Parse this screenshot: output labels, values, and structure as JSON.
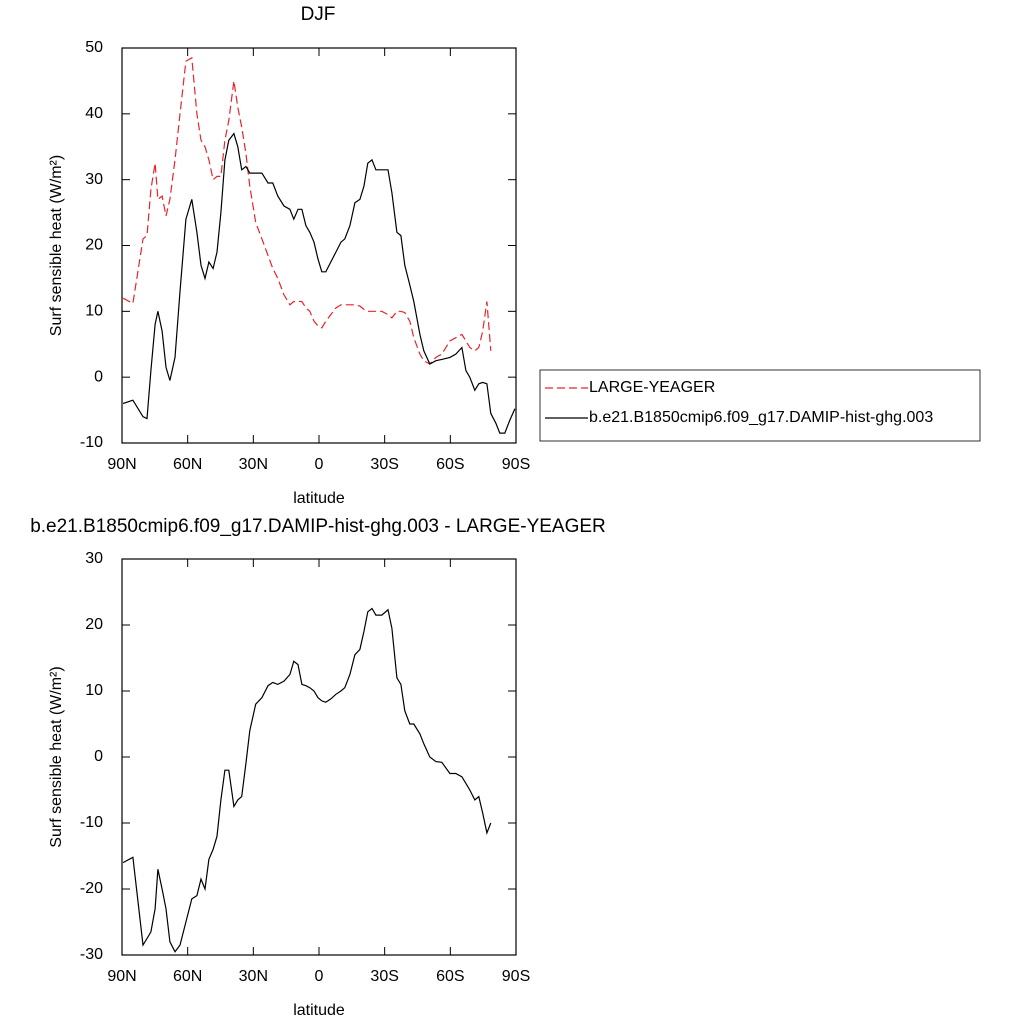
{
  "chart_data": [
    {
      "type": "line",
      "title": "DJF",
      "xlabel": "latitude",
      "ylabel": "Surf sensible heat (W/m²)",
      "x": [
        89.5,
        85.0,
        80.4,
        78.6,
        76.8,
        74.9,
        73.6,
        71.7,
        69.9,
        68.1,
        65.8,
        63.5,
        60.8,
        58.1,
        55.8,
        53.9,
        52.1,
        50.3,
        48.4,
        46.6,
        44.8,
        43.0,
        41.2,
        38.9,
        37.1,
        35.3,
        33.4,
        31.6,
        28.9,
        26.1,
        23.3,
        21.1,
        18.8,
        16.0,
        13.3,
        11.5,
        9.6,
        7.8,
        6.0,
        4.2,
        2.3,
        0.5,
        -1.3,
        -3.1,
        -5.4,
        -7.7,
        -10.0,
        -11.8,
        -14.1,
        -16.4,
        -18.7,
        -20.5,
        -22.3,
        -24.2,
        -26.0,
        -28.7,
        -31.5,
        -33.3,
        -35.6,
        -37.4,
        -39.2,
        -41.5,
        -43.3,
        -46.1,
        -47.9,
        -50.6,
        -53.4,
        -56.1,
        -59.8,
        -62.5,
        -65.3,
        -67.1,
        -68.9,
        -71.2,
        -73.0,
        -74.8,
        -76.7,
        -78.5,
        -80.8,
        -82.6,
        -84.9,
        -87.2,
        -89.5
      ],
      "series": [
        {
          "name": "LARGE-YEAGER",
          "color": "#e8242b",
          "dash": "dashed",
          "values": [
            12,
            11.2,
            21,
            21.5,
            28.5,
            32.5,
            27,
            27.5,
            24.5,
            27,
            33,
            40,
            48,
            48.5,
            40,
            36,
            35,
            33,
            30,
            30.5,
            30.5,
            36,
            39,
            45,
            41,
            38,
            34,
            29,
            23.5,
            21,
            18.5,
            16.5,
            15,
            12.5,
            11,
            11.5,
            11.5,
            11.5,
            10.5,
            10,
            8.5,
            7.8,
            7.5,
            8.5,
            9.5,
            10.5,
            11,
            11,
            11,
            11,
            10.8,
            10.3,
            10,
            10,
            10,
            10,
            9.5,
            9,
            10,
            10,
            9.8,
            8.5,
            6,
            3.5,
            2.5,
            2,
            3,
            3.5,
            5.5,
            6,
            6.5,
            5.5,
            4.5,
            4,
            4.5,
            7,
            11.5,
            4,
            null,
            null,
            null,
            null,
            null
          ]
        },
        {
          "name": "b.e21.B1850cmip6.f09_g17.DAMIP-hist-ghg.003",
          "color": "#000000",
          "dash": "solid",
          "values": [
            -4,
            -3.5,
            -6,
            -6.3,
            1,
            8,
            10,
            7,
            1.5,
            -0.5,
            3,
            13,
            24,
            27,
            22,
            17,
            15,
            17.5,
            16.5,
            19,
            25,
            33,
            36,
            37,
            35,
            31.5,
            32,
            31,
            31,
            31,
            29.5,
            29.5,
            27.5,
            26,
            25.5,
            24,
            25.5,
            25.5,
            23,
            22,
            20.5,
            18,
            16,
            16,
            17.5,
            19,
            20.5,
            21,
            23,
            26.5,
            27,
            29,
            32.5,
            33,
            31.5,
            31.5,
            31.5,
            28,
            22,
            21.5,
            17,
            14,
            11.5,
            6.5,
            4,
            2,
            2.5,
            2.7,
            3,
            3.5,
            4.5,
            1,
            0,
            -2,
            -1,
            -0.8,
            -1,
            -5.5,
            -7,
            -8.5,
            -8.5,
            -6.5,
            -4.8
          ]
        }
      ],
      "xlim": [
        90,
        -90
      ],
      "xticks": [
        {
          "value": 90,
          "label": "90N"
        },
        {
          "value": 60,
          "label": "60N"
        },
        {
          "value": 30,
          "label": "30N"
        },
        0,
        {
          "value": -30,
          "label": "30S"
        },
        {
          "value": -60,
          "label": "60S"
        },
        {
          "value": -90,
          "label": "90S"
        }
      ],
      "ylim": [
        -10,
        50
      ],
      "yticks": [
        -10,
        0,
        10,
        20,
        30,
        40,
        50
      ],
      "legend": "right"
    },
    {
      "type": "line",
      "title": "b.e21.B1850cmip6.f09_g17.DAMIP-hist-ghg.003 - LARGE-YEAGER",
      "xlabel": "latitude",
      "ylabel": "Surf sensible heat (W/m²)",
      "x": [
        89.5,
        85.0,
        80.4,
        78.6,
        76.8,
        74.9,
        73.6,
        71.7,
        69.9,
        68.1,
        65.8,
        63.5,
        60.8,
        58.1,
        55.8,
        53.9,
        52.1,
        50.3,
        48.4,
        46.6,
        44.8,
        43.0,
        41.2,
        38.9,
        37.1,
        35.3,
        33.4,
        31.6,
        28.9,
        26.1,
        23.3,
        21.1,
        18.8,
        16.0,
        13.3,
        11.5,
        9.6,
        7.8,
        6.0,
        4.2,
        2.3,
        0.5,
        -1.3,
        -3.1,
        -5.4,
        -7.7,
        -10.0,
        -11.8,
        -14.1,
        -16.4,
        -18.7,
        -20.5,
        -22.3,
        -24.2,
        -26.0,
        -28.7,
        -31.5,
        -33.3,
        -35.6,
        -37.4,
        -39.2,
        -41.5,
        -43.3,
        -46.1,
        -47.9,
        -50.6,
        -53.4,
        -56.1,
        -59.8,
        -62.5,
        -65.3,
        -67.1,
        -68.9,
        -71.2,
        -73.0,
        -74.8,
        -76.7,
        -78.5,
        -80.8,
        -82.6,
        -84.9,
        -87.2,
        -89.5
      ],
      "series": [
        {
          "color": "#000000",
          "dash": "solid",
          "values": [
            -16,
            -15.2,
            -28.5,
            -27.5,
            -26.5,
            -23,
            -17,
            -20,
            -23,
            -28,
            -29.5,
            -28.5,
            -25,
            -21.5,
            -21,
            -18.5,
            -20,
            -15.5,
            -14,
            -12,
            -6.5,
            -2,
            -2,
            -7.5,
            -6.5,
            -6,
            -1,
            4,
            8,
            9,
            10.8,
            11.3,
            11,
            11.5,
            12.5,
            14.5,
            14,
            11,
            10.8,
            10.5,
            10,
            9,
            8.5,
            8.3,
            8.8,
            9.5,
            10,
            10.5,
            12.5,
            15.5,
            16.3,
            19,
            22,
            22.5,
            21.5,
            21.5,
            22.3,
            19.5,
            12,
            11,
            7,
            5,
            5,
            3.5,
            2,
            0,
            -0.7,
            -0.8,
            -2.5,
            -2.5,
            -3,
            -4,
            -5,
            -6.5,
            -6,
            -8.5,
            -11.5,
            -10,
            null,
            null,
            null,
            null,
            null
          ]
        }
      ],
      "xlim": [
        90,
        -90
      ],
      "xticks": [
        {
          "value": 90,
          "label": "90N"
        },
        {
          "value": 60,
          "label": "60N"
        },
        {
          "value": 30,
          "label": "30N"
        },
        0,
        {
          "value": -30,
          "label": "30S"
        },
        {
          "value": -60,
          "label": "60S"
        },
        {
          "value": -90,
          "label": "90S"
        }
      ],
      "ylim": [
        -30,
        30
      ],
      "yticks": [
        -30,
        -20,
        -10,
        0,
        10,
        20,
        30
      ]
    }
  ]
}
